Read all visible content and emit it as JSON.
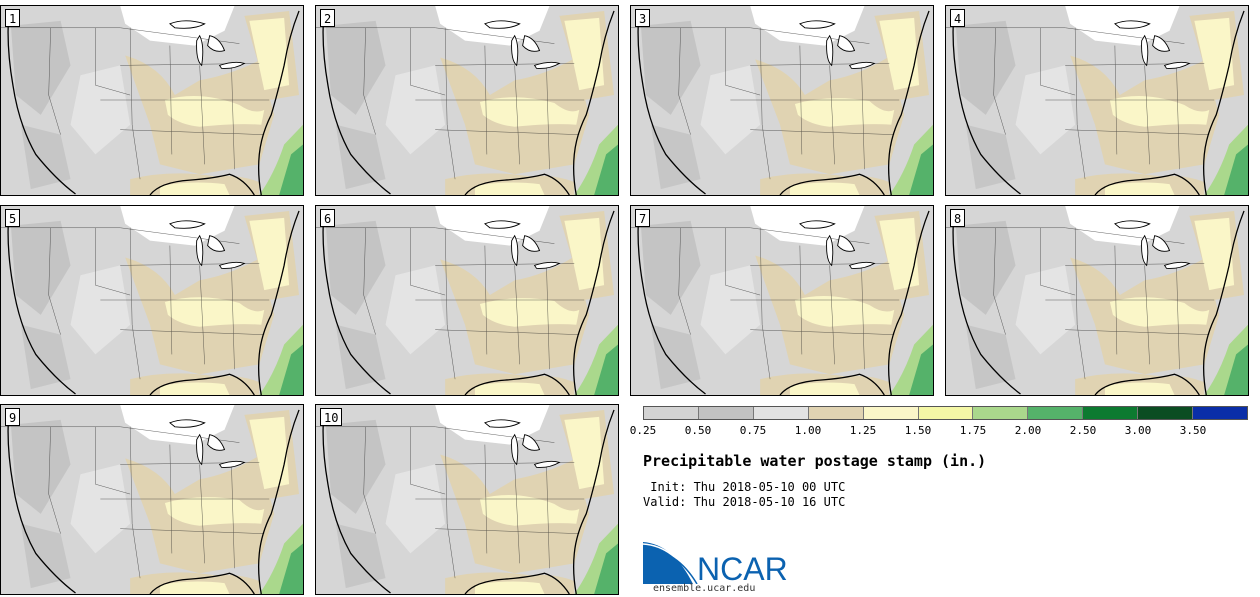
{
  "panels": [
    {
      "label": "1"
    },
    {
      "label": "2"
    },
    {
      "label": "3"
    },
    {
      "label": "4"
    },
    {
      "label": "5"
    },
    {
      "label": "6"
    },
    {
      "label": "7"
    },
    {
      "label": "8"
    },
    {
      "label": "9"
    },
    {
      "label": "10"
    }
  ],
  "legend": {
    "colors": [
      "#d3d3d3",
      "#c2c2c2",
      "#e2e2e2",
      "#e0d3b2",
      "#faf6c8",
      "#f4f7a6",
      "#aad88c",
      "#55b26a",
      "#0c7a30",
      "#0b4d22",
      "#0a2ea8"
    ],
    "ticks": [
      "0.25",
      "0.50",
      "0.75",
      "1.00",
      "1.25",
      "1.50",
      "1.75",
      "2.00",
      "2.50",
      "3.00",
      "3.50"
    ]
  },
  "title": "Precipitable water postage stamp (in.)",
  "init_line": " Init: Thu 2018-05-10 00 UTC",
  "valid_line": "Valid: Thu 2018-05-10 16 UTC",
  "logo": {
    "text": "NCAR",
    "url": "ensemble.ucar.edu",
    "color": "#0b62b0"
  },
  "map_colors": {
    "base": "#d6d6d6",
    "dark_gray": "#bfbfbf",
    "light_gray": "#e4e4e4",
    "tan": "#e0d3b2",
    "cream": "#faf6c8",
    "yellow": "#f4f7a6",
    "light_green": "#aad88c",
    "green": "#55b26a",
    "snow": "#ffffff"
  }
}
